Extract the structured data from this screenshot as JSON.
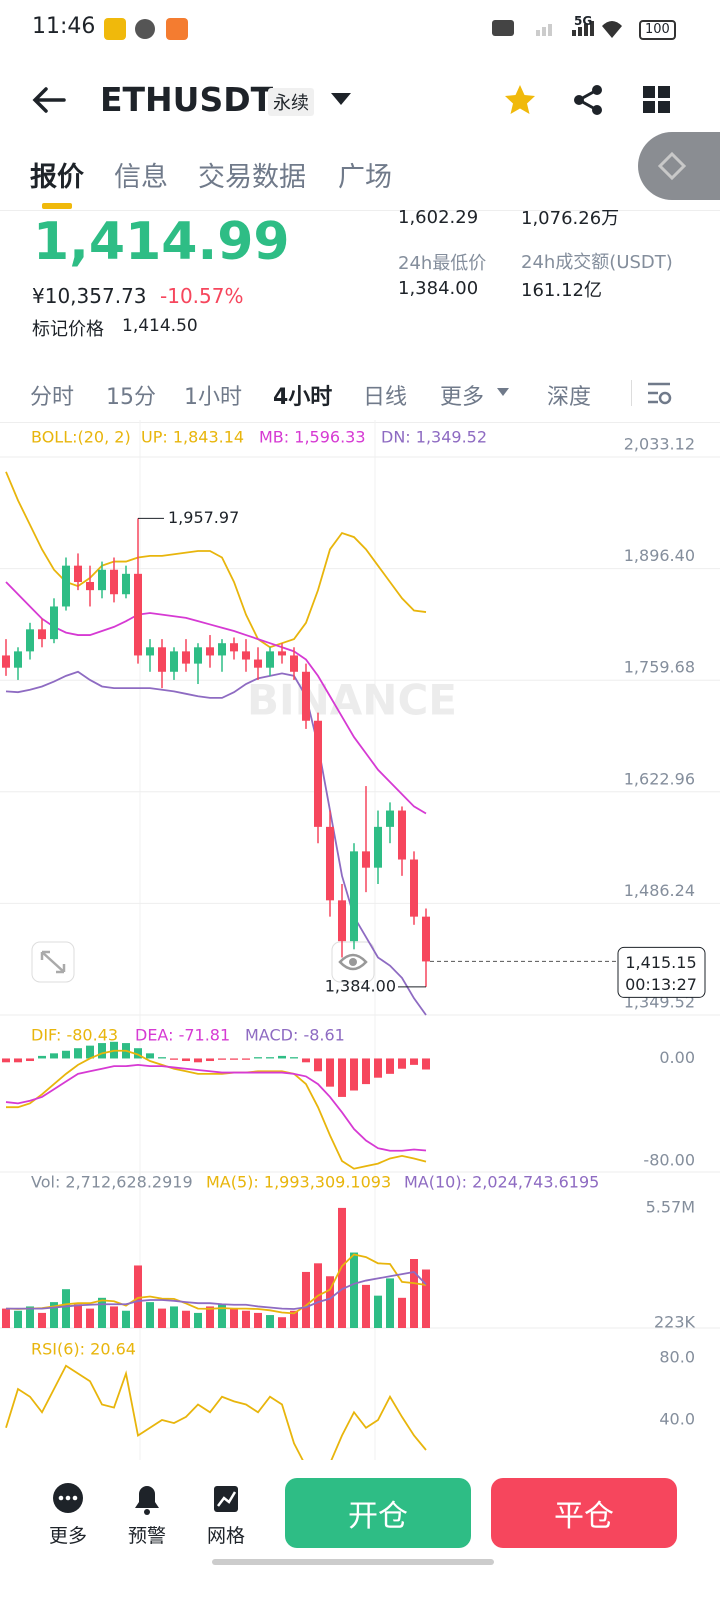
{
  "status_bar": {
    "time": "11:46",
    "network": "5G",
    "battery": "100"
  },
  "header": {
    "symbol": "ETHUSDT",
    "contract": "永续"
  },
  "tabs": [
    "报价",
    "信息",
    "交易数据",
    "广场"
  ],
  "ticker": {
    "last": "1,414.99",
    "cny": "¥10,357.73",
    "change": "-10.57%",
    "mark_label": "标记价格",
    "mark_price": "1,414.50",
    "stats": [
      {
        "value": "1,602.29"
      },
      {
        "value": "1,076.26万"
      },
      {
        "label": "24h最低价",
        "value": "1,384.00"
      },
      {
        "label": "24h成交额(USDT)",
        "value": "161.12亿"
      }
    ]
  },
  "intervals": [
    "分时",
    "15分",
    "1小时",
    "4小时",
    "日线",
    "更多",
    "深度"
  ],
  "active_interval": "4小时",
  "chart_data": {
    "type": "candlestick",
    "up_color": "#2ebd85",
    "down_color": "#f6465d",
    "ylim": [
      1349.52,
      2033.12
    ],
    "yticks": [
      {
        "value": 2033.12,
        "label": "2,033.12"
      },
      {
        "value": 1896.4,
        "label": "1,896.40"
      },
      {
        "value": 1759.68,
        "label": "1,759.68"
      },
      {
        "value": 1622.96,
        "label": "1,622.96"
      },
      {
        "value": 1486.24,
        "label": "1,486.24"
      },
      {
        "value": 1349.52,
        "label": "1,349.52"
      }
    ],
    "grid": true,
    "ohlc": [
      [
        1790,
        1810,
        1765,
        1775
      ],
      [
        1775,
        1800,
        1760,
        1795
      ],
      [
        1795,
        1830,
        1785,
        1822
      ],
      [
        1822,
        1835,
        1800,
        1810
      ],
      [
        1810,
        1860,
        1805,
        1850
      ],
      [
        1850,
        1910,
        1845,
        1900
      ],
      [
        1900,
        1915,
        1870,
        1880
      ],
      [
        1880,
        1900,
        1850,
        1870
      ],
      [
        1870,
        1905,
        1860,
        1895
      ],
      [
        1895,
        1910,
        1855,
        1865
      ],
      [
        1865,
        1900,
        1860,
        1890
      ],
      [
        1890,
        1957.97,
        1780,
        1790
      ],
      [
        1790,
        1810,
        1770,
        1800
      ],
      [
        1800,
        1810,
        1750,
        1770
      ],
      [
        1770,
        1800,
        1760,
        1795
      ],
      [
        1795,
        1810,
        1770,
        1780
      ],
      [
        1780,
        1805,
        1755,
        1800
      ],
      [
        1800,
        1815,
        1775,
        1790
      ],
      [
        1790,
        1810,
        1770,
        1805
      ],
      [
        1805,
        1812,
        1785,
        1795
      ],
      [
        1795,
        1810,
        1770,
        1785
      ],
      [
        1785,
        1800,
        1760,
        1775
      ],
      [
        1775,
        1800,
        1765,
        1795
      ],
      [
        1795,
        1805,
        1780,
        1790
      ],
      [
        1790,
        1800,
        1760,
        1770
      ],
      [
        1770,
        1780,
        1700,
        1710
      ],
      [
        1710,
        1720,
        1560,
        1580
      ],
      [
        1580,
        1600,
        1470,
        1490
      ],
      [
        1490,
        1510,
        1420,
        1440
      ],
      [
        1440,
        1560,
        1430,
        1550
      ],
      [
        1550,
        1630,
        1500,
        1530
      ],
      [
        1530,
        1600,
        1510,
        1580
      ],
      [
        1580,
        1610,
        1560,
        1600
      ],
      [
        1600,
        1605,
        1520,
        1540
      ],
      [
        1540,
        1550,
        1460,
        1470
      ],
      [
        1470,
        1480,
        1384.0,
        1415.15
      ]
    ],
    "high_marker": {
      "value": 1957.97,
      "label": "1,957.97"
    },
    "low_marker": {
      "value": 1384.0,
      "label": "1,384.00"
    },
    "last_price": {
      "value": 1415.15,
      "label": "1,415.15",
      "countdown": "00:13:27"
    },
    "watermark": "BINANCE",
    "boll": {
      "title": "BOLL:(20, 2)",
      "title_color": "#e8b50c",
      "lines": [
        {
          "label": "UP: 1,843.14",
          "color": "#e8b50c",
          "values": [
            2015,
            1980,
            1950,
            1920,
            1895,
            1880,
            1875,
            1885,
            1900,
            1905,
            1905,
            1910,
            1912,
            1912,
            1914,
            1916,
            1918,
            1918,
            1910,
            1880,
            1840,
            1810,
            1800,
            1805,
            1810,
            1830,
            1870,
            1920,
            1940,
            1935,
            1920,
            1900,
            1880,
            1860,
            1845,
            1843.14
          ]
        },
        {
          "label": "MB: 1,596.33",
          "color": "#d63ad3",
          "values": [
            1880,
            1865,
            1850,
            1835,
            1825,
            1818,
            1815,
            1815,
            1820,
            1825,
            1832,
            1840,
            1842,
            1840,
            1838,
            1836,
            1832,
            1828,
            1824,
            1820,
            1815,
            1810,
            1805,
            1800,
            1795,
            1785,
            1765,
            1740,
            1715,
            1690,
            1670,
            1650,
            1635,
            1620,
            1605,
            1596.33
          ]
        },
        {
          "label": "DN: 1,349.52",
          "color": "#8e6bc2",
          "values": [
            1746,
            1745,
            1748,
            1752,
            1758,
            1765,
            1770,
            1760,
            1752,
            1750,
            1750,
            1750,
            1750,
            1748,
            1746,
            1743,
            1740,
            1738,
            1738,
            1745,
            1755,
            1762,
            1765,
            1768,
            1765,
            1740,
            1680,
            1600,
            1520,
            1470,
            1445,
            1420,
            1410,
            1395,
            1370,
            1349.52
          ]
        }
      ]
    },
    "macd": {
      "ylim": [
        -87,
        30
      ],
      "yticks": [
        {
          "value": 0,
          "label": "0.00"
        },
        {
          "value": -80,
          "label": "-80.00"
        }
      ],
      "lines": [
        {
          "label": "DIF: -80.43",
          "color": "#e8b50c",
          "values": [
            -38,
            -38,
            -35,
            -28,
            -20,
            -12,
            -5,
            0,
            4,
            6,
            6,
            3,
            -2,
            -5,
            -8,
            -10,
            -12,
            -12,
            -12,
            -11,
            -11,
            -10,
            -10,
            -10,
            -12,
            -20,
            -38,
            -60,
            -80,
            -86,
            -84,
            -82,
            -78,
            -76,
            -78,
            -80.43
          ]
        },
        {
          "label": "DEA: -71.81",
          "color": "#d63ad3",
          "values": [
            -34,
            -35,
            -33,
            -30,
            -24,
            -18,
            -12,
            -10,
            -8,
            -6,
            -6,
            -5,
            -6,
            -6,
            -7,
            -8,
            -9,
            -10,
            -11,
            -11,
            -11,
            -11,
            -11,
            -11,
            -12,
            -14,
            -20,
            -30,
            -42,
            -55,
            -64,
            -70,
            -72,
            -72,
            -71,
            -71.81
          ]
        }
      ],
      "hist": {
        "label": "MACD: -8.61",
        "color": "#8e6bc2",
        "values": [
          -3,
          -3,
          -2,
          2,
          4,
          6,
          8,
          10,
          12,
          13,
          12,
          8,
          4,
          1,
          -1,
          -2,
          -3,
          -2,
          -1,
          -1,
          -1,
          1,
          1,
          2,
          1,
          -3,
          -10,
          -22,
          -30,
          -25,
          -20,
          -15,
          -12,
          -8,
          -5,
          -8.61
        ]
      }
    },
    "volume": {
      "label": "Vol: 2,712,628.2919",
      "color": "#848e9c",
      "ylim": [
        0,
        6400000
      ],
      "yticks": [
        {
          "value": 5570000,
          "label": "5.57M"
        },
        {
          "value": 223000,
          "label": "223K"
        }
      ],
      "values": [
        900000,
        800000,
        1000000,
        700000,
        1200000,
        1800000,
        1100000,
        900000,
        1400000,
        1000000,
        800000,
        2900000,
        1200000,
        900000,
        1000000,
        800000,
        700000,
        1000000,
        1100000,
        900000,
        800000,
        700000,
        600000,
        500000,
        800000,
        2600000,
        3000000,
        2400000,
        5570000,
        3500000,
        2000000,
        1500000,
        2300000,
        1400000,
        3200000,
        2712628.2919
      ],
      "ma": [
        {
          "label": "MA(5): 1,993,309.1093",
          "color": "#e8b50c",
          "values": [
            900000,
            880000,
            900000,
            920000,
            1000000,
            1100000,
            1150000,
            1150000,
            1280000,
            1240000,
            1040000,
            1400000,
            1460000,
            1360000,
            1350000,
            1140000,
            900000,
            890000,
            920000,
            900000,
            900000,
            880000,
            820000,
            720000,
            680000,
            1040000,
            1500000,
            1780000,
            2870000,
            3410000,
            3290000,
            3000000,
            2970000,
            2140000,
            2080000,
            1993309.1093
          ]
        },
        {
          "label": "MA(10): 2,024,743.6195",
          "color": "#8e6bc2",
          "values": [
            900000,
            900000,
            900000,
            900000,
            950000,
            1000000,
            1050000,
            1080000,
            1100000,
            1100000,
            1100000,
            1250000,
            1300000,
            1300000,
            1260000,
            1200000,
            1150000,
            1150000,
            1100000,
            1080000,
            1080000,
            1000000,
            950000,
            900000,
            880000,
            960000,
            1200000,
            1360000,
            1800000,
            2050000,
            2200000,
            2300000,
            2400000,
            2500000,
            2600000,
            2024743.6195
          ]
        }
      ]
    },
    "rsi": {
      "label": "RSI(6): 20.64",
      "color": "#e8b50c",
      "ylim": [
        0,
        100
      ],
      "yticks": [
        {
          "value": 80,
          "label": "80.0"
        },
        {
          "value": 40,
          "label": "40.0"
        }
      ],
      "values": [
        35,
        60,
        55,
        45,
        60,
        75,
        70,
        65,
        50,
        48,
        70,
        30,
        35,
        40,
        38,
        42,
        50,
        45,
        55,
        52,
        50,
        45,
        55,
        50,
        25,
        10,
        8,
        12,
        30,
        45,
        35,
        40,
        55,
        42,
        30,
        20.64
      ]
    }
  },
  "bottom_bar": {
    "actions": [
      "更多",
      "预警",
      "网格"
    ],
    "open": "开仓",
    "close": "平仓"
  }
}
